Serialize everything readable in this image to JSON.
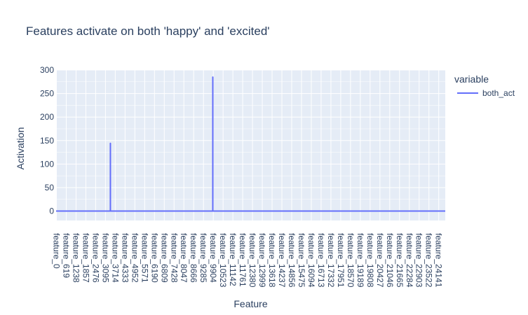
{
  "chart_data": {
    "type": "line",
    "title": "Features activate on both 'happy' and 'excited'",
    "xlabel": "Feature",
    "ylabel": "Activation",
    "ylim": [
      -20,
      300
    ],
    "yticks": [
      0,
      50,
      100,
      150,
      200,
      250,
      300
    ],
    "x_tick_labels": [
      "feature_0",
      "feature_619",
      "feature_1238",
      "feature_1857",
      "feature_2476",
      "feature_3095",
      "feature_3714",
      "feature_4333",
      "feature_4952",
      "feature_5571",
      "feature_6190",
      "feature_6809",
      "feature_7428",
      "feature_8047",
      "feature_8666",
      "feature_9285",
      "feature_9904",
      "feature_10523",
      "feature_11142",
      "feature_11761",
      "feature_12380",
      "feature_12999",
      "feature_13618",
      "feature_14237",
      "feature_14856",
      "feature_15475",
      "feature_16094",
      "feature_16713",
      "feature_17332",
      "feature_17951",
      "feature_18570",
      "feature_19189",
      "feature_19808",
      "feature_20427",
      "feature_21046",
      "feature_21665",
      "feature_22284",
      "feature_22903",
      "feature_23522",
      "feature_24141"
    ],
    "x_count": 24576,
    "legend_title": "variable",
    "legend_position": "right",
    "grid": true,
    "series": [
      {
        "name": "both_act",
        "color": "#636efa",
        "points": [
          {
            "x": 0,
            "y": 0
          },
          {
            "x": 3428,
            "y": 0
          },
          {
            "x": 3429,
            "y": 144
          },
          {
            "x": 3430,
            "y": 0
          },
          {
            "x": 9895,
            "y": 0
          },
          {
            "x": 9896,
            "y": 285
          },
          {
            "x": 9897,
            "y": 0
          },
          {
            "x": 24575,
            "y": 0
          }
        ]
      }
    ]
  },
  "colors": {
    "plot_bg": "#e5ecf6",
    "grid": "#ffffff",
    "text": "#2a3f5f"
  }
}
